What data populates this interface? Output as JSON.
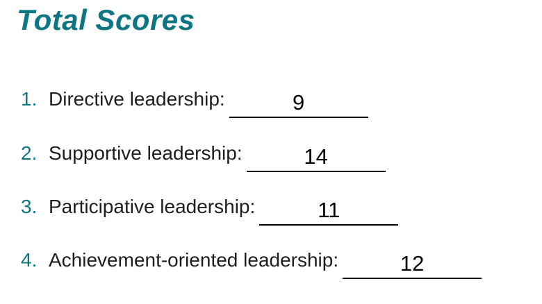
{
  "page": {
    "title": "Total Scores"
  },
  "colors": {
    "accent_teal": "#0E7682",
    "body_text": "#1e1e1e",
    "underline": "#000000",
    "background": "#ffffff"
  },
  "scores": {
    "items": [
      {
        "number": "1.",
        "label": "Directive leadership:",
        "value": "9"
      },
      {
        "number": "2.",
        "label": "Supportive leadership:",
        "value": "14"
      },
      {
        "number": "3.",
        "label": "Participative leadership:",
        "value": "11"
      },
      {
        "number": "4.",
        "label": "Achievement-oriented leadership:",
        "value": "12"
      }
    ]
  }
}
